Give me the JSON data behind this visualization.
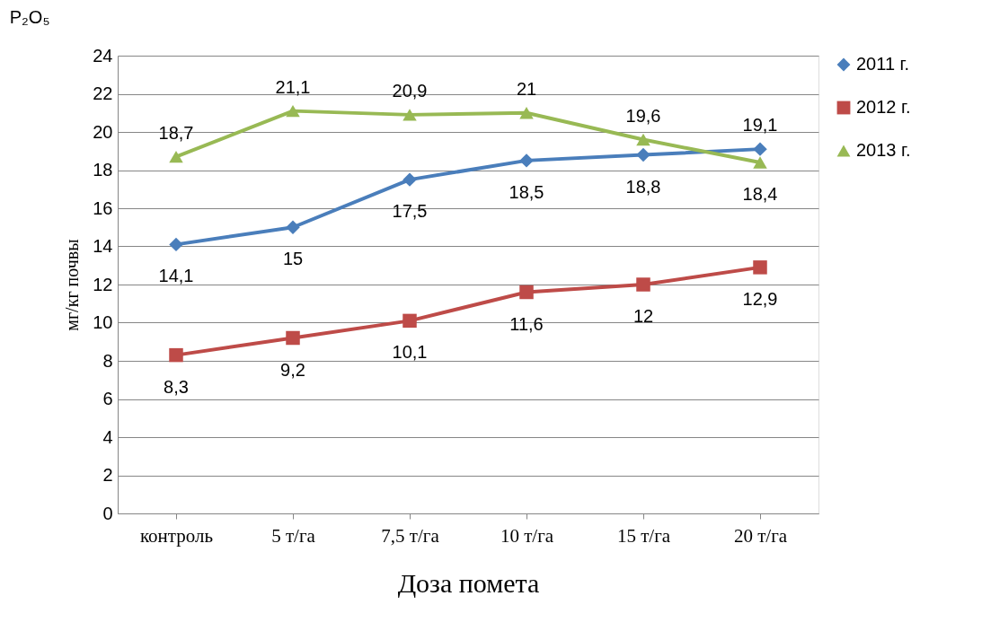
{
  "chart_data": {
    "type": "line",
    "title": "P₂O₅",
    "xlabel": "Доза помета",
    "ylabel": "мг/кг почвы",
    "categories": [
      "контроль",
      "5 т/га",
      "7,5 т/га",
      "10 т/га",
      "15 т/га",
      "20 т/га"
    ],
    "series": [
      {
        "name": "2011 г.",
        "color": "#4a7ebb",
        "marker": "diamond",
        "values": [
          14.1,
          15,
          17.5,
          18.5,
          18.8,
          19.1
        ],
        "value_labels": [
          "14,1",
          "15",
          "17,5",
          "18,5",
          "18,8",
          "19,1"
        ]
      },
      {
        "name": "2012 г.",
        "color": "#be4b48",
        "marker": "square",
        "values": [
          8.3,
          9.2,
          10.1,
          11.6,
          12,
          12.9
        ],
        "value_labels": [
          "8,3",
          "9,2",
          "10,1",
          "11,6",
          "12",
          "12,9"
        ]
      },
      {
        "name": "2013 г.",
        "color": "#98b954",
        "marker": "triangle",
        "values": [
          18.7,
          21.1,
          20.9,
          21,
          19.6,
          18.4
        ],
        "value_labels": [
          "18,7",
          "21,1",
          "20,9",
          "21",
          "19,6",
          "18,4"
        ]
      }
    ],
    "ylim": [
      0,
      24
    ],
    "yticks": [
      0,
      2,
      4,
      6,
      8,
      10,
      12,
      14,
      16,
      18,
      20,
      22,
      24
    ],
    "grid": "y",
    "legend": "right",
    "line_style": "solid"
  }
}
